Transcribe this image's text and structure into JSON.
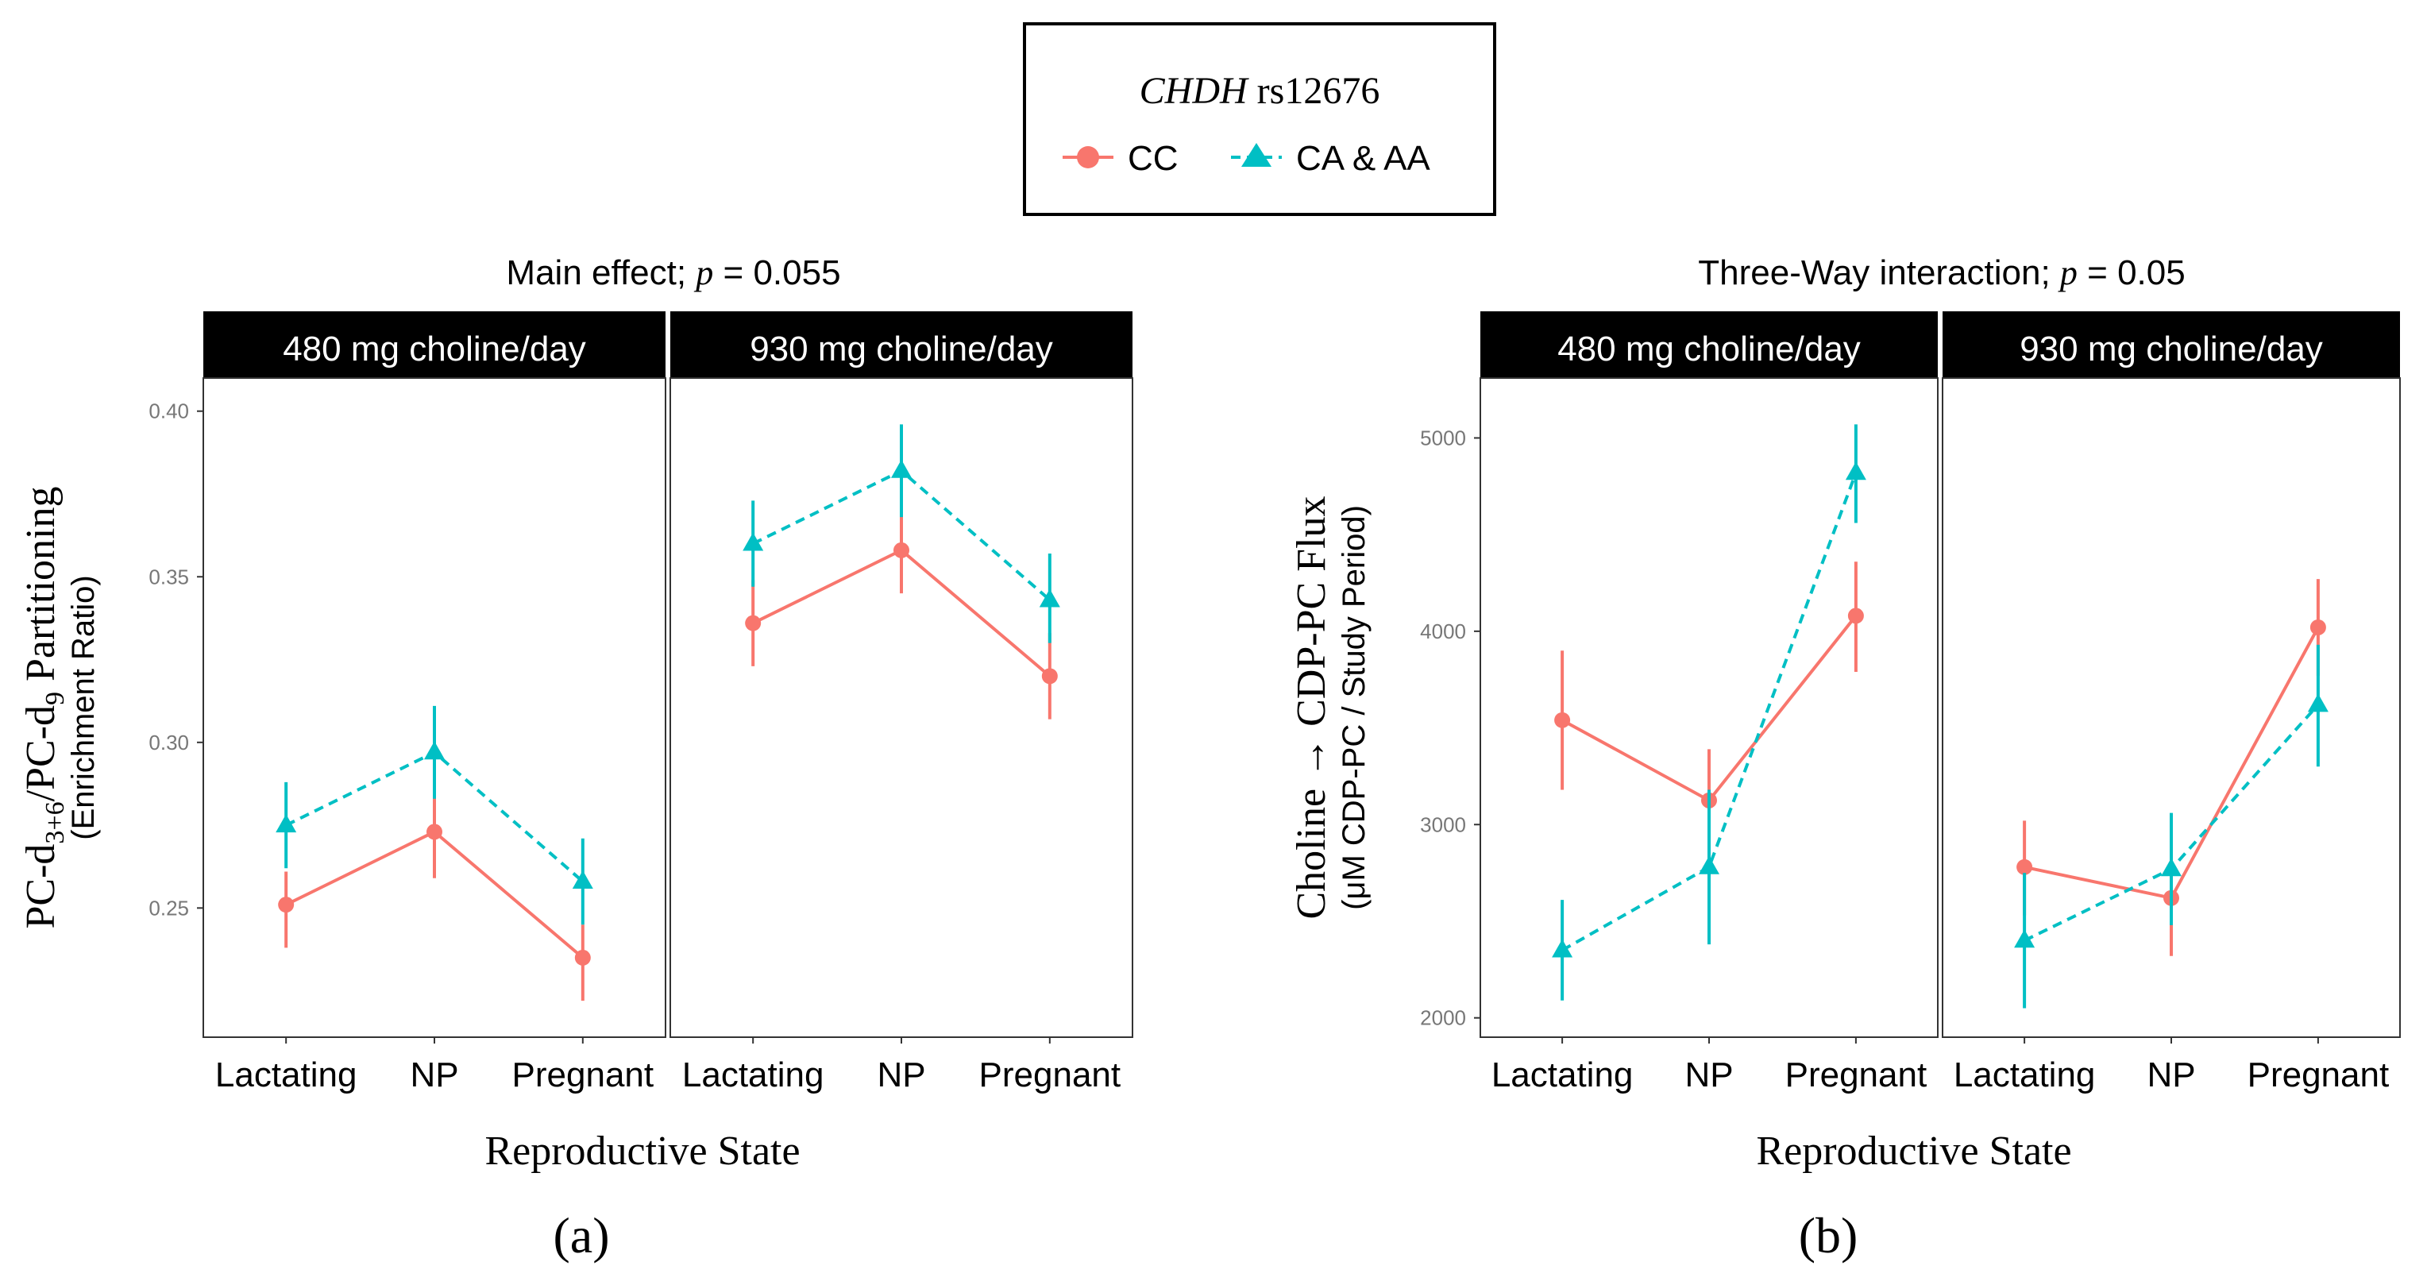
{
  "legend": {
    "title_gene": "CHDH",
    "title_snp": "rs12676",
    "entries": [
      {
        "label": "CC",
        "color": "#F8766D",
        "shape": "circle",
        "dash": "solid"
      },
      {
        "label": "CA & AA",
        "color": "#00BFC4",
        "shape": "triangle",
        "dash": "dashed"
      }
    ]
  },
  "xlabel": "Reproductive State",
  "chart_data": [
    {
      "type": "line",
      "panel_label": "(a)",
      "title_prefix": "Main effect; ",
      "title_p_symbol": "p",
      "title_suffix": " = 0.055",
      "ylabel_main_parts": [
        "PC-d",
        "3+6",
        "/PC-d",
        "9",
        " Partitioning"
      ],
      "ylabel_sub": "(Enrichment Ratio)",
      "ylim": [
        0.211,
        0.41
      ],
      "yticks": [
        0.25,
        0.3,
        0.35,
        0.4
      ],
      "ytick_labels": [
        "0.25",
        "0.30",
        "0.35",
        "0.40"
      ],
      "categories": [
        "Lactating",
        "NP",
        "Pregnant"
      ],
      "facets": [
        {
          "strip": "480 mg choline/day",
          "series": [
            {
              "name": "CC",
              "values": [
                0.251,
                0.273,
                0.235
              ],
              "err_low": [
                0.238,
                0.259,
                0.222
              ],
              "err_high": [
                0.261,
                0.285,
                0.245
              ]
            },
            {
              "name": "CA & AA",
              "values": [
                0.275,
                0.297,
                0.258
              ],
              "err_low": [
                0.262,
                0.283,
                0.245
              ],
              "err_high": [
                0.288,
                0.311,
                0.271
              ]
            }
          ]
        },
        {
          "strip": "930 mg choline/day",
          "series": [
            {
              "name": "CC",
              "values": [
                0.336,
                0.358,
                0.32
              ],
              "err_low": [
                0.323,
                0.345,
                0.307
              ],
              "err_high": [
                0.349,
                0.371,
                0.333
              ]
            },
            {
              "name": "CA & AA",
              "values": [
                0.36,
                0.382,
                0.343
              ],
              "err_low": [
                0.347,
                0.368,
                0.33
              ],
              "err_high": [
                0.373,
                0.396,
                0.357
              ]
            }
          ]
        }
      ]
    },
    {
      "type": "line",
      "panel_label": "(b)",
      "title_prefix": "Three-Way interaction; ",
      "title_p_symbol": "p",
      "title_suffix": " = 0.05",
      "ylabel_main_parts": [
        "Choline → CDP-PC Flux"
      ],
      "ylabel_sub": "(μM CDP-PC / Study Period)",
      "ylim": [
        1900,
        5310
      ],
      "yticks": [
        2000,
        3000,
        4000,
        5000
      ],
      "ytick_labels": [
        "2000",
        "3000",
        "4000",
        "5000"
      ],
      "categories": [
        "Lactating",
        "NP",
        "Pregnant"
      ],
      "facets": [
        {
          "strip": "480 mg choline/day",
          "series": [
            {
              "name": "CC",
              "values": [
                3540,
                3125,
                4080
              ],
              "err_low": [
                3180,
                2860,
                3790
              ],
              "err_high": [
                3900,
                3390,
                4360
              ]
            },
            {
              "name": "CA & AA",
              "values": [
                2350,
                2780,
                4820
              ],
              "err_low": [
                2090,
                2380,
                4560
              ],
              "err_high": [
                2610,
                3180,
                5070
              ]
            }
          ]
        },
        {
          "strip": "930 mg choline/day",
          "series": [
            {
              "name": "CC",
              "values": [
                2780,
                2620,
                4020
              ],
              "err_low": [
                2530,
                2320,
                3770
              ],
              "err_high": [
                3020,
                2910,
                4270
              ]
            },
            {
              "name": "CA & AA",
              "values": [
                2400,
                2770,
                3620
              ],
              "err_low": [
                2050,
                2480,
                3300
              ],
              "err_high": [
                2750,
                3060,
                3930
              ]
            }
          ]
        }
      ]
    }
  ]
}
